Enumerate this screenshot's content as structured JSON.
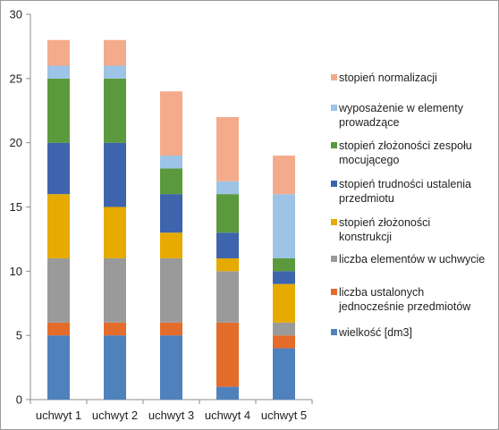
{
  "chart_data": {
    "type": "bar",
    "stacked": true,
    "categories": [
      "uchwyt 1",
      "uchwyt 2",
      "uchwyt 3",
      "uchwyt 4",
      "uchwyt 5"
    ],
    "ylim": [
      0,
      30
    ],
    "yticks": [
      "0",
      "5",
      "10",
      "15",
      "20",
      "25",
      "30"
    ],
    "grid": false,
    "legend_position": "right",
    "series": [
      {
        "name": "wielkość [dm3]",
        "color": "#4f81bd",
        "values": [
          5,
          5,
          5,
          1,
          4
        ]
      },
      {
        "name": "liczba ustalonych jednocześnie przedmiotów",
        "color": "#e46c2a",
        "values": [
          1,
          1,
          1,
          5,
          1
        ]
      },
      {
        "name": "liczba elementów w uchwycie",
        "color": "#9a9a9a",
        "values": [
          5,
          5,
          5,
          4,
          1
        ]
      },
      {
        "name": "stopień złożoności konstrukcji",
        "color": "#e6aa00",
        "values": [
          5,
          4,
          2,
          1,
          3
        ]
      },
      {
        "name": "stopień trudności ustalenia przedmiotu",
        "color": "#3d64ad",
        "values": [
          4,
          5,
          3,
          2,
          1
        ]
      },
      {
        "name": "stopień złożoności zespołu mocującego",
        "color": "#5b9a3c",
        "values": [
          5,
          5,
          2,
          3,
          1
        ]
      },
      {
        "name": "wyposażenie w elementy prowadzące",
        "color": "#9dc3e6",
        "values": [
          1,
          1,
          1,
          1,
          5
        ]
      },
      {
        "name": "stopień normalizacji",
        "color": "#f4ab8c",
        "values": [
          2,
          2,
          5,
          5,
          3
        ]
      }
    ]
  }
}
